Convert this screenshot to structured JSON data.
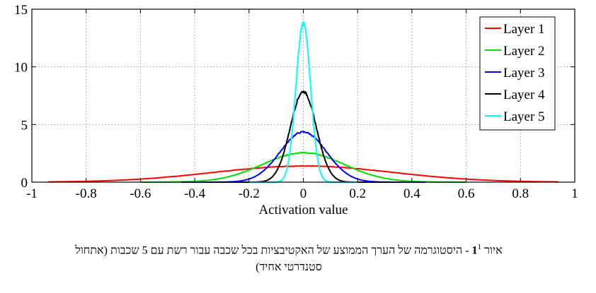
{
  "chart_data": {
    "type": "line",
    "xlabel": "Activation value",
    "ylabel": "",
    "xlim": [
      -1,
      1
    ],
    "ylim": [
      0,
      15
    ],
    "x_ticks": [
      -1,
      -0.8,
      -0.6,
      -0.4,
      -0.2,
      0,
      0.2,
      0.4,
      0.6,
      0.8,
      1
    ],
    "x_tick_labels": [
      "-1",
      "-0.8",
      "-0.6",
      "-0.4",
      "-0.2",
      "0",
      "0.2",
      "0.4",
      "0.6",
      "0.8",
      "1"
    ],
    "y_ticks": [
      0,
      5,
      10,
      15
    ],
    "y_tick_labels": [
      "0",
      "5",
      "10",
      "15"
    ],
    "grid": true,
    "legend_position": "top-right",
    "series": [
      {
        "name": "Layer 1",
        "color": "#ff0000",
        "peak": 1.4,
        "spread": 0.33,
        "range": [
          -0.94,
          0.94
        ]
      },
      {
        "name": "Layer 2",
        "color": "#00e000",
        "peak": 2.55,
        "spread": 0.15,
        "range": [
          -0.6,
          0.6
        ]
      },
      {
        "name": "Layer 3",
        "color": "#0000ff",
        "peak": 4.35,
        "spread": 0.085,
        "range": [
          -0.45,
          0.45
        ]
      },
      {
        "name": "Layer 4",
        "color": "#000000",
        "peak": 7.85,
        "spread": 0.048,
        "range": [
          -0.32,
          0.32
        ]
      },
      {
        "name": "Layer 5",
        "color": "#00ffff",
        "peak": 13.8,
        "spread": 0.027,
        "range": [
          -0.2,
          0.2
        ]
      }
    ]
  },
  "caption": {
    "prefix": "איור ",
    "figure_number": "1",
    "footnote_mark": "1",
    "line1": " - היסטוגרמה של הערך הממוצע של האקטיבציות בכל שכבה עבור רשת עם 5 שכבות (אתחול",
    "line2": "סטנדרטי אחיד)"
  }
}
